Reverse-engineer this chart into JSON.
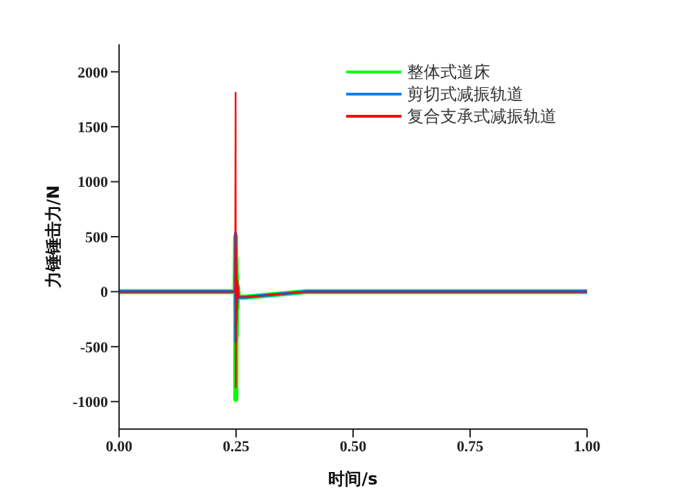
{
  "chart_data": {
    "type": "line",
    "xlabel": "时间/s",
    "ylabel": "力锤锤击力/N",
    "xlim": [
      0,
      1
    ],
    "xticks": [
      {
        "value": 0,
        "label": "0.00"
      },
      {
        "value": 0.25,
        "label": "0.25"
      },
      {
        "value": 0.5,
        "label": "0.50"
      },
      {
        "value": 0.75,
        "label": "0.75"
      },
      {
        "value": 1,
        "label": "1.00"
      }
    ],
    "ylim": [
      -1250,
      2250
    ],
    "yticks": [
      -1000,
      -500,
      0,
      500,
      1000,
      1500,
      2000
    ],
    "legend": "top right",
    "grid": false,
    "series": [
      {
        "name": "整体式道床",
        "color": "#00ff00",
        "x": [
          0,
          0.248,
          0.249,
          0.2495,
          0.25,
          0.2505,
          0.251,
          0.252,
          0.253,
          0.255,
          0.27,
          0.4,
          1
        ],
        "values": [
          0,
          0,
          500,
          -980,
          300,
          -400,
          150,
          -150,
          50,
          -50,
          -50,
          0,
          0
        ]
      },
      {
        "name": "剪切式减振轨道",
        "color": "#0080ff",
        "x": [
          0,
          0.248,
          0.249,
          0.2495,
          0.25,
          0.2505,
          0.251,
          0.252,
          0.253,
          0.255,
          0.27,
          0.4,
          1
        ],
        "values": [
          0,
          0,
          530,
          -450,
          250,
          -250,
          100,
          -100,
          50,
          -50,
          -50,
          0,
          0
        ]
      },
      {
        "name": "复合支承式减振轨道",
        "color": "#ff0000",
        "x": [
          0,
          0.248,
          0.249,
          0.2495,
          0.25,
          0.2505,
          0.251,
          0.252,
          0.253,
          0.255,
          0.27,
          0.4,
          1
        ],
        "values": [
          0,
          0,
          1810,
          -870,
          400,
          -300,
          200,
          -150,
          100,
          -50,
          -50,
          0,
          0
        ]
      }
    ]
  }
}
